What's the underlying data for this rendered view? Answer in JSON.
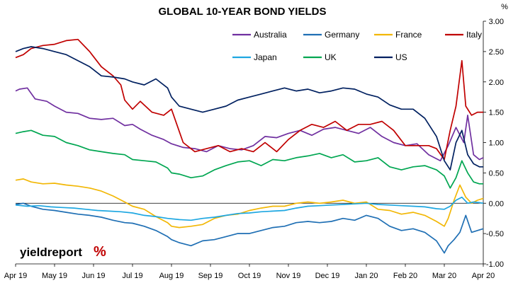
{
  "chart_data": {
    "type": "line",
    "title": "GLOBAL 10-YEAR BOND YIELDS",
    "unit_label": "%",
    "xlabel": "",
    "ylabel": "",
    "x_tick_labels": [
      "Apr 19",
      "May 19",
      "Jun 19",
      "Jul 19",
      "Aug 19",
      "Sep 19",
      "Oct 19",
      "Nov 19",
      "Dec 19",
      "Jan 20",
      "Feb 20",
      "Mar 20",
      "Apr 20"
    ],
    "x_range": [
      0,
      12
    ],
    "ylim": [
      -1.0,
      3.0
    ],
    "y_ticks": [
      -1.0,
      -0.5,
      0.0,
      0.5,
      1.0,
      1.5,
      2.0,
      2.5,
      3.0
    ],
    "y_tick_labels": [
      "-1.00",
      "-0.50",
      "0.00",
      "0.50",
      "1.00",
      "1.50",
      "2.00",
      "2.50",
      "3.00"
    ],
    "grid": false,
    "legend_position": "top-right",
    "series": [
      {
        "name": "Australia",
        "color": "#7030A0",
        "x": [
          0,
          0.1,
          0.3,
          0.5,
          0.8,
          1.0,
          1.3,
          1.6,
          1.9,
          2.2,
          2.5,
          2.8,
          3.0,
          3.2,
          3.5,
          3.8,
          4.0,
          4.3,
          4.6,
          4.9,
          5.2,
          5.5,
          5.8,
          6.1,
          6.4,
          6.7,
          7.0,
          7.3,
          7.6,
          7.9,
          8.2,
          8.5,
          8.8,
          9.1,
          9.4,
          9.7,
          10.0,
          10.3,
          10.6,
          10.9,
          11.1,
          11.3,
          11.5,
          11.6,
          11.75,
          11.9,
          12.0
        ],
        "y": [
          1.85,
          1.88,
          1.9,
          1.72,
          1.68,
          1.6,
          1.5,
          1.48,
          1.4,
          1.38,
          1.4,
          1.28,
          1.3,
          1.22,
          1.12,
          1.05,
          0.98,
          0.92,
          0.9,
          0.85,
          0.95,
          0.9,
          0.88,
          0.95,
          1.1,
          1.08,
          1.15,
          1.2,
          1.12,
          1.22,
          1.25,
          1.2,
          1.15,
          1.25,
          1.1,
          1.0,
          0.95,
          0.98,
          0.8,
          0.7,
          0.95,
          1.25,
          1.0,
          1.45,
          0.8,
          0.72,
          0.75
        ]
      },
      {
        "name": "Germany",
        "color": "#1F6FB4",
        "x": [
          0,
          0.2,
          0.4,
          0.7,
          1.0,
          1.3,
          1.6,
          1.9,
          2.2,
          2.5,
          2.8,
          3.0,
          3.3,
          3.6,
          3.9,
          4.0,
          4.2,
          4.5,
          4.8,
          5.1,
          5.4,
          5.7,
          6.0,
          6.3,
          6.6,
          6.9,
          7.2,
          7.5,
          7.8,
          8.1,
          8.4,
          8.7,
          9.0,
          9.3,
          9.6,
          9.9,
          10.2,
          10.5,
          10.8,
          11.0,
          11.1,
          11.25,
          11.4,
          11.55,
          11.7,
          11.85,
          12.0
        ],
        "y": [
          -0.02,
          0.0,
          -0.05,
          -0.1,
          -0.12,
          -0.15,
          -0.18,
          -0.2,
          -0.23,
          -0.28,
          -0.32,
          -0.33,
          -0.38,
          -0.45,
          -0.55,
          -0.6,
          -0.65,
          -0.7,
          -0.62,
          -0.6,
          -0.55,
          -0.5,
          -0.5,
          -0.45,
          -0.4,
          -0.38,
          -0.32,
          -0.3,
          -0.32,
          -0.3,
          -0.25,
          -0.28,
          -0.2,
          -0.25,
          -0.38,
          -0.45,
          -0.42,
          -0.48,
          -0.62,
          -0.82,
          -0.7,
          -0.6,
          -0.48,
          -0.2,
          -0.48,
          -0.45,
          -0.42
        ]
      },
      {
        "name": "France",
        "color": "#F2B705",
        "x": [
          0,
          0.2,
          0.4,
          0.7,
          1.0,
          1.3,
          1.6,
          1.9,
          2.2,
          2.5,
          2.8,
          3.0,
          3.3,
          3.6,
          3.9,
          4.0,
          4.2,
          4.5,
          4.8,
          5.1,
          5.4,
          5.7,
          6.0,
          6.3,
          6.6,
          6.9,
          7.2,
          7.5,
          7.8,
          8.1,
          8.4,
          8.7,
          9.0,
          9.3,
          9.6,
          9.9,
          10.2,
          10.5,
          10.8,
          11.0,
          11.1,
          11.25,
          11.4,
          11.55,
          11.7,
          11.85,
          12.0
        ],
        "y": [
          0.38,
          0.4,
          0.35,
          0.32,
          0.33,
          0.3,
          0.28,
          0.25,
          0.2,
          0.12,
          0.02,
          -0.05,
          -0.1,
          -0.22,
          -0.32,
          -0.38,
          -0.4,
          -0.38,
          -0.35,
          -0.25,
          -0.2,
          -0.18,
          -0.12,
          -0.08,
          -0.05,
          -0.05,
          0.0,
          0.02,
          0.0,
          0.02,
          0.05,
          0.0,
          0.02,
          -0.1,
          -0.12,
          -0.18,
          -0.15,
          -0.2,
          -0.3,
          -0.38,
          -0.25,
          0.05,
          0.3,
          0.1,
          0.0,
          0.05,
          0.08
        ]
      },
      {
        "name": "Italy",
        "color": "#C00000",
        "x": [
          0,
          0.2,
          0.4,
          0.7,
          1.0,
          1.3,
          1.6,
          1.9,
          2.2,
          2.5,
          2.7,
          2.8,
          3.0,
          3.2,
          3.5,
          3.8,
          4.0,
          4.3,
          4.6,
          4.9,
          5.2,
          5.5,
          5.8,
          6.1,
          6.4,
          6.7,
          7.0,
          7.3,
          7.6,
          7.9,
          8.2,
          8.5,
          8.8,
          9.1,
          9.4,
          9.7,
          10.0,
          10.3,
          10.6,
          10.8,
          11.0,
          11.15,
          11.3,
          11.45,
          11.55,
          11.7,
          11.85,
          12.0
        ],
        "y": [
          2.4,
          2.45,
          2.55,
          2.6,
          2.62,
          2.68,
          2.7,
          2.5,
          2.25,
          2.1,
          1.95,
          1.7,
          1.55,
          1.68,
          1.5,
          1.45,
          1.55,
          1.0,
          0.85,
          0.9,
          0.95,
          0.85,
          0.9,
          0.85,
          1.0,
          0.85,
          1.05,
          1.2,
          1.3,
          1.25,
          1.35,
          1.2,
          1.3,
          1.3,
          1.35,
          1.2,
          0.95,
          0.95,
          0.95,
          0.9,
          0.72,
          1.2,
          1.6,
          2.35,
          1.6,
          1.45,
          1.5,
          1.5
        ]
      },
      {
        "name": "Japan",
        "color": "#1EA7E1",
        "x": [
          0,
          0.3,
          0.6,
          0.9,
          1.2,
          1.5,
          1.8,
          2.1,
          2.4,
          2.7,
          3.0,
          3.3,
          3.6,
          3.9,
          4.2,
          4.5,
          4.8,
          5.1,
          5.4,
          5.7,
          6.0,
          6.3,
          6.6,
          6.9,
          7.2,
          7.5,
          7.8,
          8.1,
          8.4,
          8.7,
          9.0,
          9.3,
          9.6,
          9.9,
          10.2,
          10.5,
          10.8,
          11.0,
          11.15,
          11.3,
          11.45,
          11.6,
          11.75,
          11.9,
          12.0
        ],
        "y": [
          -0.03,
          -0.05,
          -0.04,
          -0.06,
          -0.07,
          -0.08,
          -0.1,
          -0.12,
          -0.13,
          -0.14,
          -0.16,
          -0.2,
          -0.22,
          -0.25,
          -0.27,
          -0.28,
          -0.25,
          -0.23,
          -0.2,
          -0.17,
          -0.16,
          -0.14,
          -0.13,
          -0.12,
          -0.08,
          -0.05,
          -0.04,
          -0.03,
          -0.02,
          -0.01,
          0.0,
          -0.02,
          -0.03,
          -0.04,
          -0.05,
          -0.06,
          -0.09,
          -0.1,
          -0.05,
          0.05,
          0.1,
          0.0,
          0.02,
          0.01,
          0.0
        ]
      },
      {
        "name": "UK",
        "color": "#00A651",
        "x": [
          0,
          0.2,
          0.4,
          0.7,
          1.0,
          1.3,
          1.6,
          1.9,
          2.2,
          2.5,
          2.8,
          3.0,
          3.3,
          3.6,
          3.9,
          4.0,
          4.2,
          4.5,
          4.8,
          5.1,
          5.4,
          5.7,
          6.0,
          6.3,
          6.6,
          6.9,
          7.2,
          7.5,
          7.8,
          8.1,
          8.4,
          8.7,
          9.0,
          9.3,
          9.6,
          9.9,
          10.2,
          10.5,
          10.8,
          11.0,
          11.15,
          11.3,
          11.45,
          11.6,
          11.75,
          11.9,
          12.0
        ],
        "y": [
          1.15,
          1.18,
          1.2,
          1.12,
          1.1,
          1.0,
          0.95,
          0.88,
          0.85,
          0.82,
          0.8,
          0.72,
          0.7,
          0.68,
          0.58,
          0.5,
          0.48,
          0.42,
          0.45,
          0.55,
          0.62,
          0.68,
          0.7,
          0.62,
          0.72,
          0.7,
          0.75,
          0.78,
          0.82,
          0.75,
          0.8,
          0.68,
          0.7,
          0.75,
          0.6,
          0.55,
          0.6,
          0.62,
          0.55,
          0.45,
          0.25,
          0.42,
          0.7,
          0.5,
          0.35,
          0.32,
          0.32
        ]
      },
      {
        "name": "US",
        "color": "#002060",
        "x": [
          0,
          0.2,
          0.4,
          0.7,
          1.0,
          1.3,
          1.6,
          1.9,
          2.2,
          2.5,
          2.8,
          3.0,
          3.3,
          3.6,
          3.9,
          4.0,
          4.2,
          4.5,
          4.8,
          5.1,
          5.4,
          5.7,
          6.0,
          6.3,
          6.6,
          6.9,
          7.2,
          7.5,
          7.8,
          8.1,
          8.4,
          8.7,
          9.0,
          9.3,
          9.6,
          9.9,
          10.2,
          10.5,
          10.8,
          11.0,
          11.15,
          11.3,
          11.45,
          11.6,
          11.75,
          11.9,
          12.0
        ],
        "y": [
          2.5,
          2.55,
          2.58,
          2.55,
          2.5,
          2.45,
          2.35,
          2.25,
          2.1,
          2.08,
          2.05,
          2.0,
          1.95,
          2.05,
          1.9,
          1.75,
          1.6,
          1.55,
          1.5,
          1.55,
          1.6,
          1.7,
          1.75,
          1.8,
          1.85,
          1.9,
          1.85,
          1.88,
          1.82,
          1.85,
          1.9,
          1.88,
          1.8,
          1.75,
          1.62,
          1.55,
          1.55,
          1.4,
          1.1,
          0.7,
          0.55,
          1.0,
          1.2,
          0.8,
          0.65,
          0.6,
          0.6
        ]
      }
    ]
  },
  "brand": {
    "text": "yieldreport",
    "symbol": "%"
  }
}
